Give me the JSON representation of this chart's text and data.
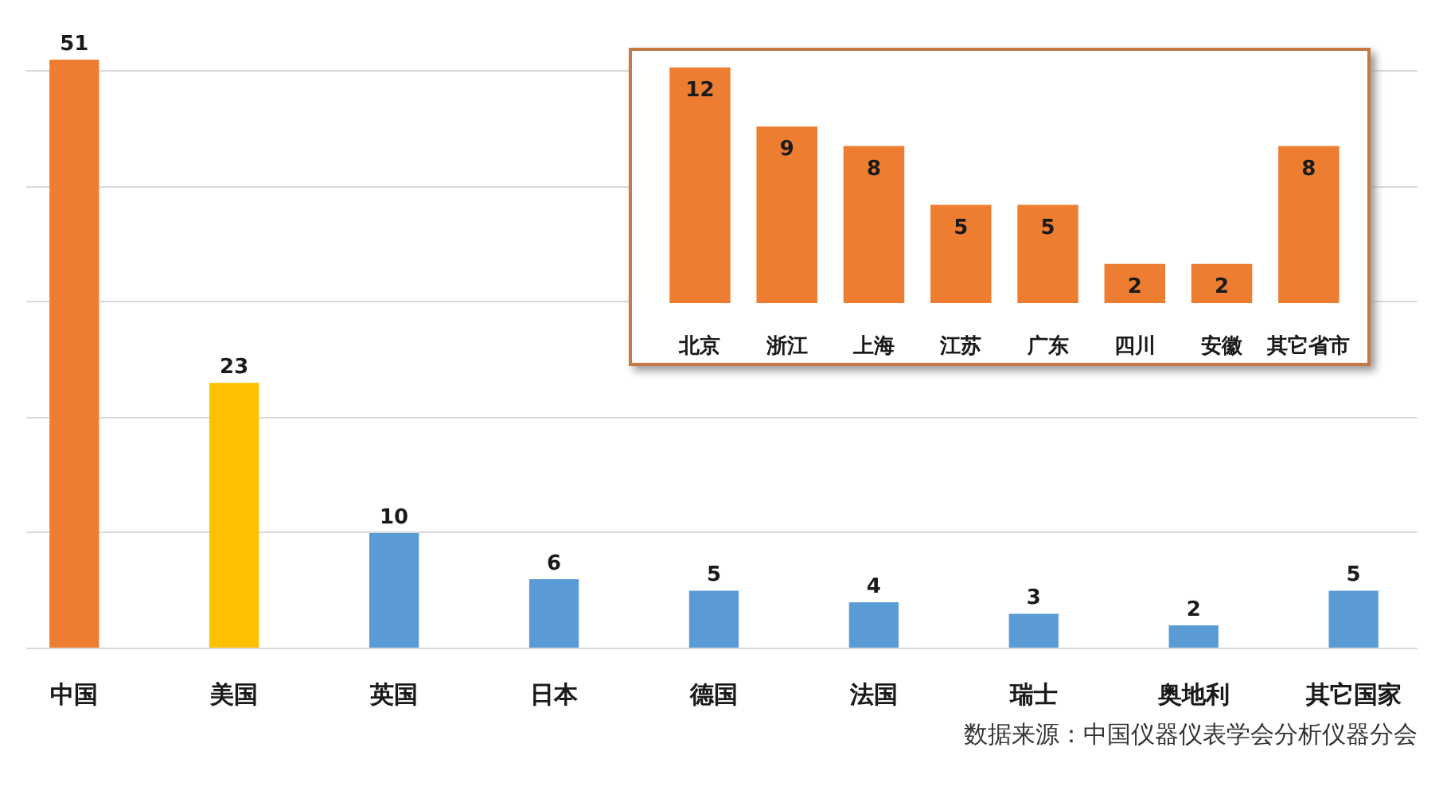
{
  "chart_data": [
    {
      "type": "bar",
      "categories": [
        "中国",
        "美国",
        "英国",
        "日本",
        "德国",
        "法国",
        "瑞士",
        "奥地利",
        "其它国家"
      ],
      "values": [
        51,
        23,
        10,
        6,
        5,
        4,
        3,
        2,
        5
      ],
      "colors": [
        "#ed7d31",
        "#ffc000",
        "#5b9bd5",
        "#5b9bd5",
        "#5b9bd5",
        "#5b9bd5",
        "#5b9bd5",
        "#5b9bd5",
        "#5b9bd5"
      ],
      "yticks": [
        {
          "value": 10,
          "label": null
        },
        {
          "value": 20,
          "label": null
        },
        {
          "value": 30,
          "label": null
        },
        {
          "value": 40,
          "label": null
        },
        {
          "value": 50,
          "label": null
        }
      ],
      "grid": "y",
      "tick_labels": "x",
      "data_labels": true,
      "annotations": [
        "数据来源：中国仪器仪表学会分析仪器分会"
      ]
    },
    {
      "type": "bar",
      "categories": [
        "北京",
        "浙江",
        "上海",
        "江苏",
        "广东",
        "四川",
        "安徽",
        "其它省市"
      ],
      "values": [
        12,
        9,
        8,
        5,
        5,
        2,
        2,
        8
      ],
      "color": "#ed7d31",
      "tick_labels": "x",
      "data_labels": true
    }
  ]
}
